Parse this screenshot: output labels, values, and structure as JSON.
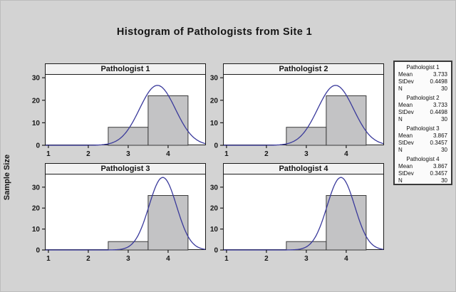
{
  "title": "Histogram of Pathologists from Site 1",
  "ylabel": "Sample Size",
  "colors": {
    "background": "#d3d3d3",
    "plot_bg": "#ffffff",
    "header_bg": "#f2f2f2",
    "frame": "#1c1c1c",
    "bar_fill": "#c3c3c5",
    "bar_stroke": "#3a3a3a",
    "curve": "#39399b",
    "tick_text": "#151515"
  },
  "legend": {
    "mean_label": "Mean",
    "stdev_label": "StDev",
    "n_label": "N",
    "sections": [
      {
        "title": "Pathologist 1",
        "mean": "3.733",
        "stdev": "0.4498",
        "n": "30"
      },
      {
        "title": "Pathologist 2",
        "mean": "3.733",
        "stdev": "0.4498",
        "n": "30"
      },
      {
        "title": "Pathologist 3",
        "mean": "3.867",
        "stdev": "0.3457",
        "n": "30"
      },
      {
        "title": "Pathologist 4",
        "mean": "3.867",
        "stdev": "0.3457",
        "n": "30"
      }
    ]
  },
  "chart_data": [
    {
      "type": "histogram",
      "title": "Pathologist 1",
      "bins": [
        {
          "x0": 2.5,
          "x1": 3.5,
          "count": 8
        },
        {
          "x0": 3.5,
          "x1": 4.5,
          "count": 22
        }
      ],
      "normal_fit": {
        "mean": 3.733,
        "stdev": 0.4498,
        "n": 30,
        "binwidth": 1
      },
      "xlim": [
        0.93,
        4.93
      ],
      "ylim": [
        0,
        31
      ],
      "xticks": [
        1,
        2,
        3,
        4
      ],
      "yticks": [
        0,
        10,
        20,
        30
      ],
      "grid": false
    },
    {
      "type": "histogram",
      "title": "Pathologist 2",
      "bins": [
        {
          "x0": 2.5,
          "x1": 3.5,
          "count": 8
        },
        {
          "x0": 3.5,
          "x1": 4.5,
          "count": 22
        }
      ],
      "normal_fit": {
        "mean": 3.733,
        "stdev": 0.4498,
        "n": 30,
        "binwidth": 1
      },
      "xlim": [
        0.93,
        4.93
      ],
      "ylim": [
        0,
        31
      ],
      "xticks": [
        1,
        2,
        3,
        4
      ],
      "yticks": [
        0,
        10,
        20,
        30
      ],
      "grid": false
    },
    {
      "type": "histogram",
      "title": "Pathologist 3",
      "bins": [
        {
          "x0": 2.5,
          "x1": 3.5,
          "count": 4
        },
        {
          "x0": 3.5,
          "x1": 4.5,
          "count": 26
        }
      ],
      "normal_fit": {
        "mean": 3.867,
        "stdev": 0.3457,
        "n": 30,
        "binwidth": 1
      },
      "xlim": [
        0.93,
        4.93
      ],
      "ylim": [
        0,
        35.7
      ],
      "xticks": [
        1,
        2,
        3,
        4
      ],
      "yticks": [
        0,
        10,
        20,
        30
      ],
      "grid": false
    },
    {
      "type": "histogram",
      "title": "Pathologist 4",
      "bins": [
        {
          "x0": 2.5,
          "x1": 3.5,
          "count": 4
        },
        {
          "x0": 3.5,
          "x1": 4.5,
          "count": 26
        }
      ],
      "normal_fit": {
        "mean": 3.867,
        "stdev": 0.3457,
        "n": 30,
        "binwidth": 1
      },
      "xlim": [
        0.93,
        4.93
      ],
      "ylim": [
        0,
        35.7
      ],
      "xticks": [
        1,
        2,
        3,
        4
      ],
      "yticks": [
        0,
        10,
        20,
        30
      ],
      "grid": false
    }
  ]
}
